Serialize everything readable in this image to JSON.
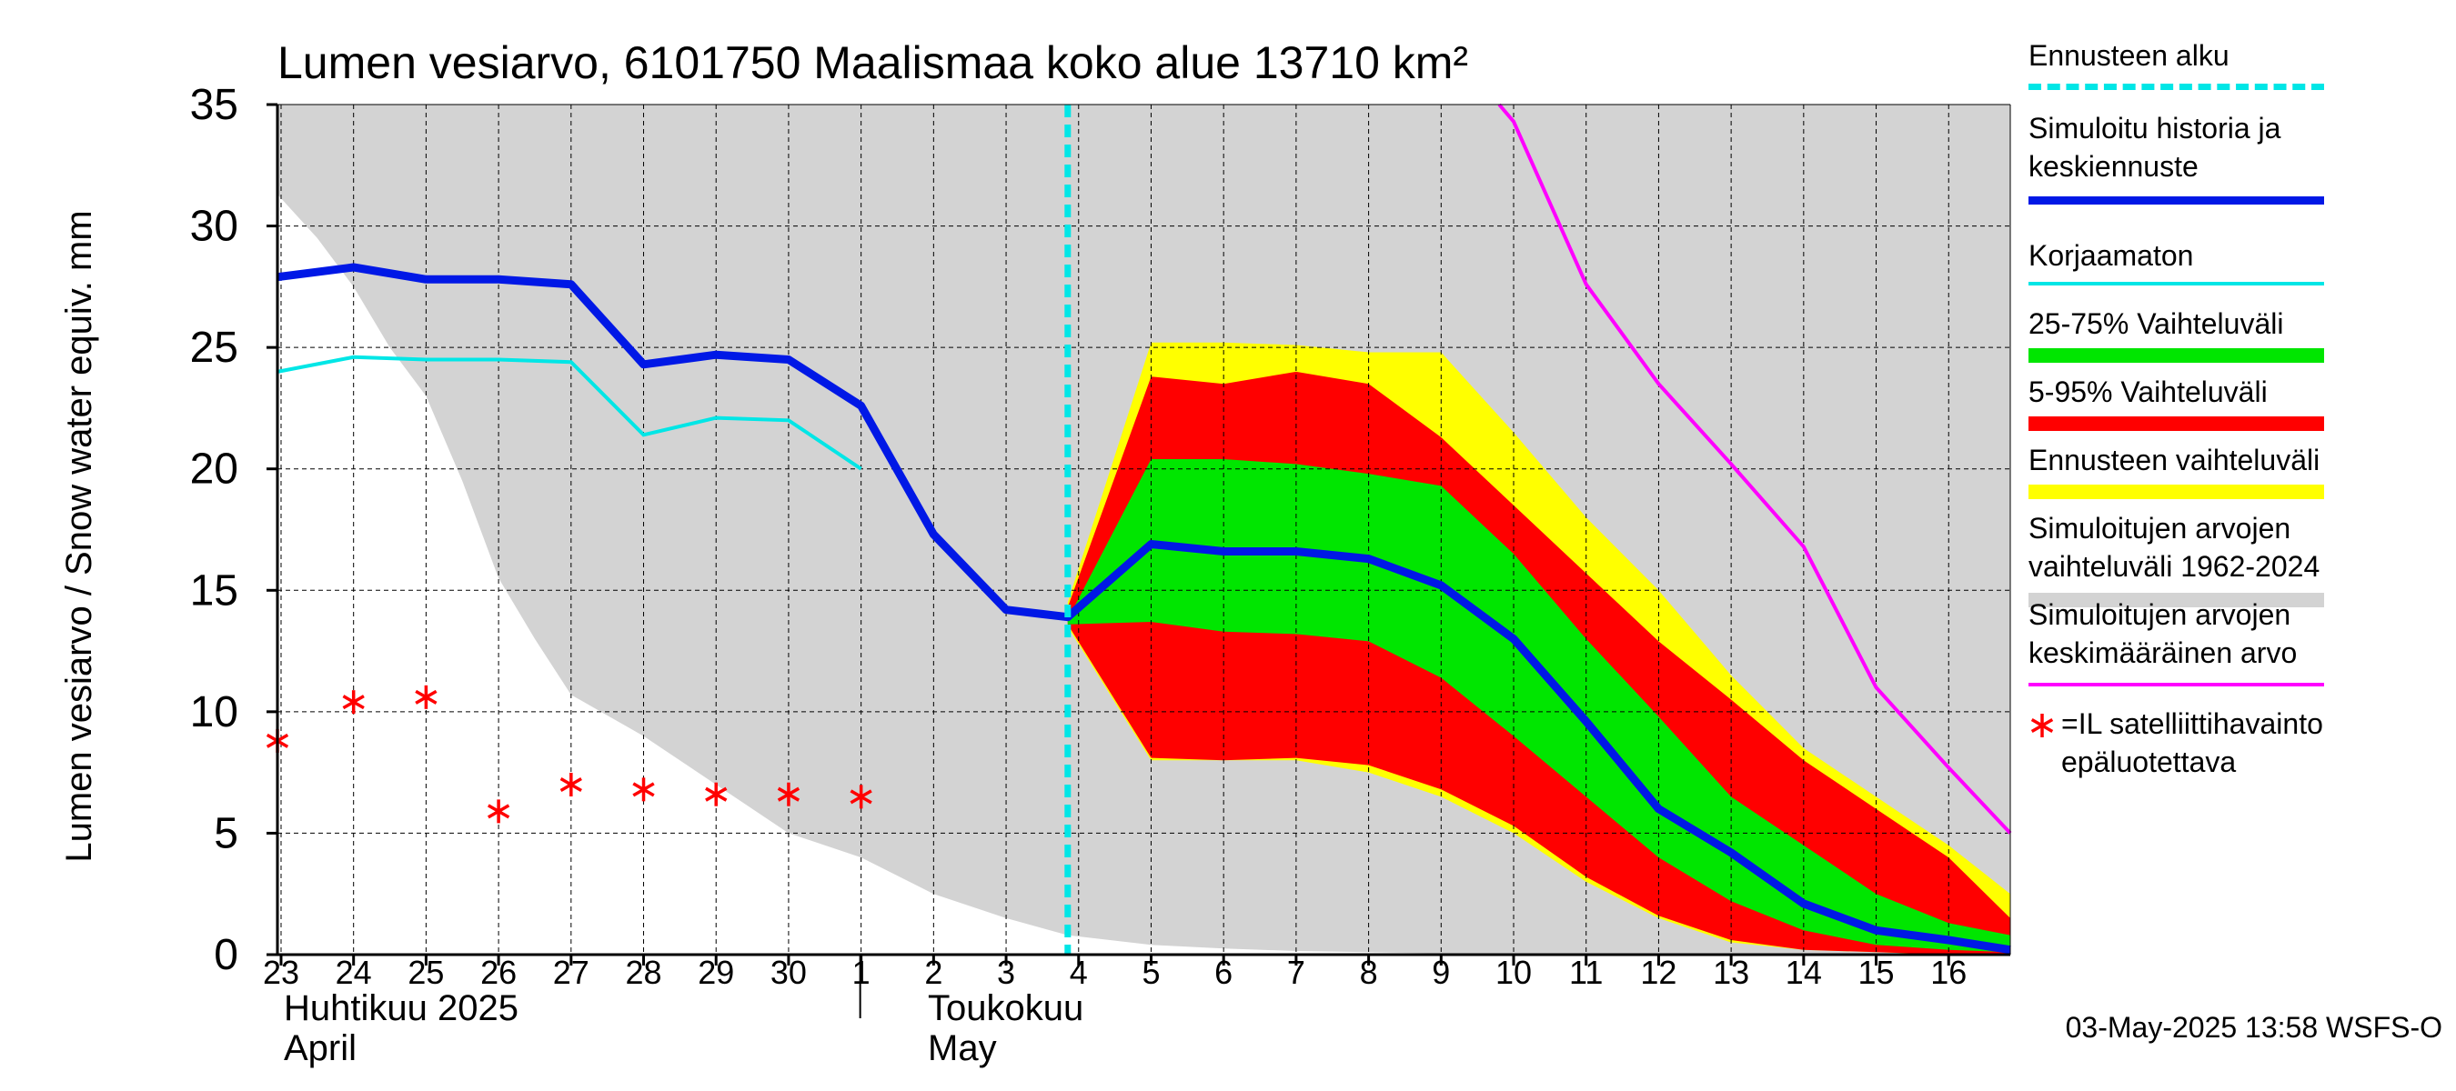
{
  "chart_data": {
    "type": "area",
    "title": "Lumen vesiarvo, 6101750 Maalismaa koko alue 13710 km²",
    "ylabel": "Lumen vesiarvo / Snow water equiv.    mm",
    "ylim": [
      0,
      35
    ],
    "yticks": [
      0,
      5,
      10,
      15,
      20,
      25,
      30,
      35
    ],
    "x_day_range": [
      -0.05,
      23.85
    ],
    "grid": true,
    "forecast_start_day": 10.85,
    "day_labels": [
      "23",
      "24",
      "25",
      "26",
      "27",
      "28",
      "29",
      "30",
      "1",
      "2",
      "3",
      "4",
      "5",
      "6",
      "7",
      "8",
      "9",
      "10",
      "11",
      "12",
      "13",
      "14",
      "15",
      "16"
    ],
    "month_labels": [
      {
        "day": 0,
        "fi": "Huhtikuu  2025",
        "en": "April"
      },
      {
        "day": 9,
        "fi": "Toukokuu",
        "en": "May"
      }
    ],
    "timestamp": "03-May-2025 13:58 WSFS-O",
    "colors": {
      "grey": "#d3d3d3",
      "yellow": "#ffff00",
      "red": "#ff0000",
      "green": "#00e600",
      "blue": "#0018e6",
      "cyan": "#00e6e6",
      "magenta": "#ff00ff",
      "star": "#ff0000"
    },
    "series": {
      "grey_range": {
        "name": "Simuloitujen arvojen vaihteluväli 1962-2024",
        "x": [
          -0.05,
          0.5,
          1,
          1.5,
          2,
          2.5,
          3,
          3.5,
          4,
          5,
          6,
          7,
          8,
          9,
          10,
          10.85,
          12,
          13,
          14,
          15,
          16,
          17,
          18,
          19,
          20,
          21,
          22,
          23,
          23.85
        ],
        "upper": [
          35,
          35,
          35,
          35,
          35,
          35,
          35,
          35,
          35,
          35,
          35,
          35,
          35,
          35,
          35,
          35,
          35,
          35,
          35,
          35,
          35,
          35,
          35,
          35,
          35,
          35,
          35,
          35,
          35
        ],
        "lower": [
          31.3,
          29.5,
          27.5,
          25,
          23,
          19.5,
          15.5,
          13,
          10.7,
          9,
          7,
          5,
          4,
          2.5,
          1.5,
          0.8,
          0.4,
          0.25,
          0.15,
          0.1,
          0.05,
          0.02,
          0,
          0,
          0,
          0,
          0,
          0,
          0
        ]
      },
      "yellow": {
        "name": "Ennusteen vaihteluväli",
        "x": [
          10.85,
          12,
          13,
          14,
          15,
          16,
          17,
          18,
          19,
          20,
          21,
          22,
          23,
          23.85
        ],
        "upper": [
          14.5,
          25.2,
          25.2,
          25.1,
          24.8,
          24.8,
          21.5,
          18,
          15,
          11.5,
          8.5,
          6.5,
          4.5,
          2.5
        ],
        "lower": [
          13.5,
          8,
          8,
          8,
          7.5,
          6.5,
          5,
          3,
          1.5,
          0.5,
          0.2,
          0.1,
          0,
          0
        ]
      },
      "red": {
        "name": "5-95% Vaihteluväli",
        "x": [
          10.85,
          12,
          13,
          14,
          15,
          16,
          17,
          18,
          19,
          20,
          21,
          22,
          23,
          23.85
        ],
        "upper": [
          14.3,
          23.8,
          23.5,
          24,
          23.5,
          21.3,
          18.5,
          15.7,
          12.9,
          10.5,
          8,
          6,
          4,
          1.5
        ],
        "lower": [
          13.6,
          8.1,
          8,
          8.1,
          7.8,
          6.8,
          5.3,
          3.2,
          1.6,
          0.6,
          0.2,
          0.1,
          0,
          0
        ]
      },
      "green": {
        "name": "25-75% Vaihteluväli",
        "x": [
          10.85,
          12,
          13,
          14,
          15,
          16,
          17,
          18,
          19,
          20,
          21,
          22,
          23,
          23.85
        ],
        "upper": [
          13.8,
          20.4,
          20.4,
          20.2,
          19.8,
          19.3,
          16.5,
          13,
          9.8,
          6.5,
          4.5,
          2.5,
          1.3,
          0.8
        ],
        "lower": [
          13.6,
          13.7,
          13.3,
          13.2,
          12.9,
          11.4,
          9,
          6.5,
          4,
          2.2,
          1,
          0.4,
          0.2,
          0.1
        ]
      },
      "cyan": {
        "name": "Korjaamaton",
        "x": [
          -0.05,
          1,
          2,
          3,
          4,
          5,
          6,
          7,
          8
        ],
        "y": [
          24,
          24.6,
          24.5,
          24.5,
          24.4,
          21.4,
          22.1,
          22,
          20
        ]
      },
      "magenta": {
        "name": "Simuloitujen arvojen keskimääräinen arvo",
        "x": [
          16.8,
          17,
          18,
          19,
          20,
          21,
          22,
          23,
          23.85
        ],
        "y": [
          35,
          34.3,
          27.6,
          23.5,
          20.2,
          16.8,
          11,
          7.7,
          5
        ]
      },
      "blue": {
        "name": "Simuloitu historia ja keskiennuste",
        "x": [
          -0.05,
          1,
          2,
          3,
          4,
          5,
          6,
          7,
          8,
          9,
          10,
          10.85,
          12,
          13,
          14,
          15,
          16,
          17,
          18,
          19,
          20,
          21,
          22,
          23,
          23.85
        ],
        "y": [
          27.9,
          28.3,
          27.8,
          27.8,
          27.6,
          24.3,
          24.7,
          24.5,
          22.6,
          17.3,
          14.2,
          13.9,
          16.9,
          16.6,
          16.6,
          16.3,
          15.2,
          13,
          9.6,
          6,
          4.2,
          2.1,
          1,
          0.6,
          0.2
        ]
      },
      "satellite": {
        "name": "=IL satelliittihavainto epäluotettava",
        "x": [
          -0.05,
          1,
          2,
          3,
          4,
          5,
          6,
          7,
          8
        ],
        "y": [
          8.8,
          10.4,
          10.6,
          5.9,
          7,
          6.8,
          6.6,
          6.6,
          6.5
        ]
      }
    },
    "legend": [
      {
        "label": "Ennusteen alku",
        "swatch": "dashed",
        "color": "#00e6e6"
      },
      {
        "label": "Simuloitu historia ja keskiennuste",
        "swatch": "line",
        "color": "#0018e6"
      },
      {
        "label": "Korjaamaton",
        "swatch": "thin",
        "color": "#00e6e6"
      },
      {
        "label": "25-75% Vaihteluväli",
        "swatch": "bar",
        "color": "#00e600"
      },
      {
        "label": "5-95% Vaihteluväli",
        "swatch": "bar",
        "color": "#ff0000"
      },
      {
        "label": "Ennusteen vaihteluväli",
        "swatch": "bar",
        "color": "#ffff00"
      },
      {
        "label": "Simuloitujen arvojen vaihteluväli 1962-2024",
        "swatch": "bar",
        "color": "#d3d3d3"
      },
      {
        "label": "Simuloitujen arvojen keskimääräinen arvo",
        "swatch": "thin",
        "color": "#ff00ff"
      },
      {
        "label": "=IL satelliittihavainto epäluotettava",
        "swatch": "star",
        "color": "#ff0000"
      }
    ]
  }
}
